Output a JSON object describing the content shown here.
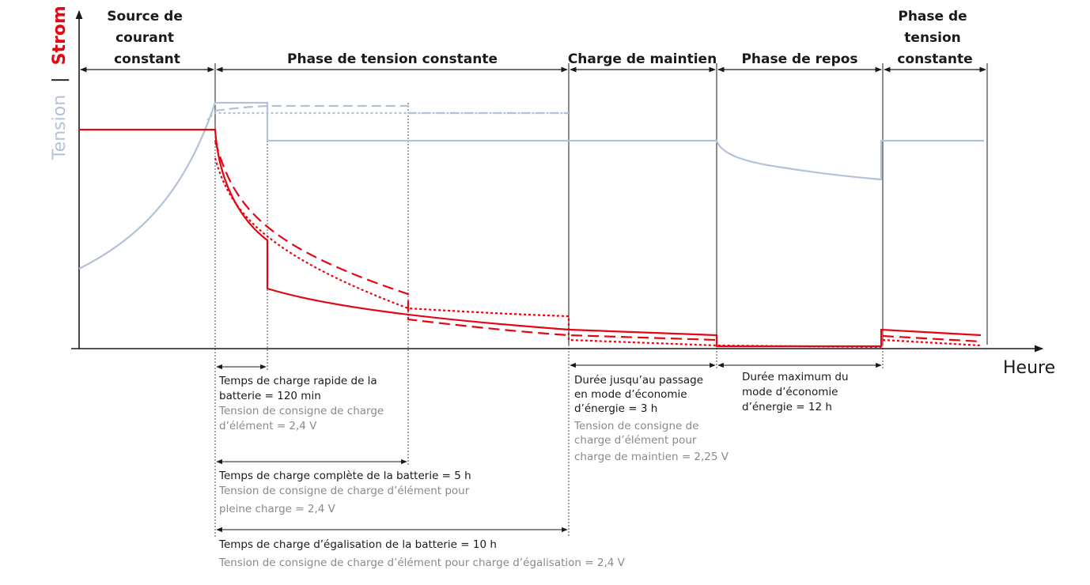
{
  "colors": {
    "strom": "#e30613",
    "tension": "#b4c2d8",
    "axis": "#1a1a1a",
    "grey_text": "#8a8a8a"
  },
  "axes": {
    "y_label_tension": "Tension",
    "y_separator": "|",
    "y_label_strom": "Strom",
    "x_label": "Heure"
  },
  "phases": {
    "p1": [
      "Source de",
      "courant",
      "constant"
    ],
    "p2": "Phase de tension constante",
    "p3": "Charge de maintien",
    "p4": "Phase de repos",
    "p5": [
      "Phase de",
      "tension",
      "constante"
    ]
  },
  "annotations": {
    "rapide": {
      "dark": [
        "Temps de charge rapide de la",
        "batterie = 120 min"
      ],
      "grey": [
        "Tension de consigne de charge",
        "d’élément = 2,4 V"
      ]
    },
    "complete": {
      "dark": [
        "Temps de charge complète de la batterie = 5 h"
      ],
      "grey": [
        "Tension de consigne de charge d’élément pour",
        "pleine charge = 2,4 V"
      ]
    },
    "egalisation": {
      "dark": [
        "Temps de charge d’égalisation de la batterie = 10 h"
      ],
      "grey": [
        "Tension de consigne de charge d’élément pour charge d’égalisation = 2,4 V"
      ]
    },
    "passage": {
      "dark": [
        "Durée jusqu’au passage",
        "en mode d’économie",
        "d’énergie = 3 h"
      ],
      "grey": [
        "Tension de consigne de",
        "charge d’élément pour",
        "charge de maintien = 2,25 V"
      ]
    },
    "repos": {
      "dark": [
        "Durée maximum du",
        "mode d’économie",
        "d’énergie = 12 h"
      ]
    }
  }
}
